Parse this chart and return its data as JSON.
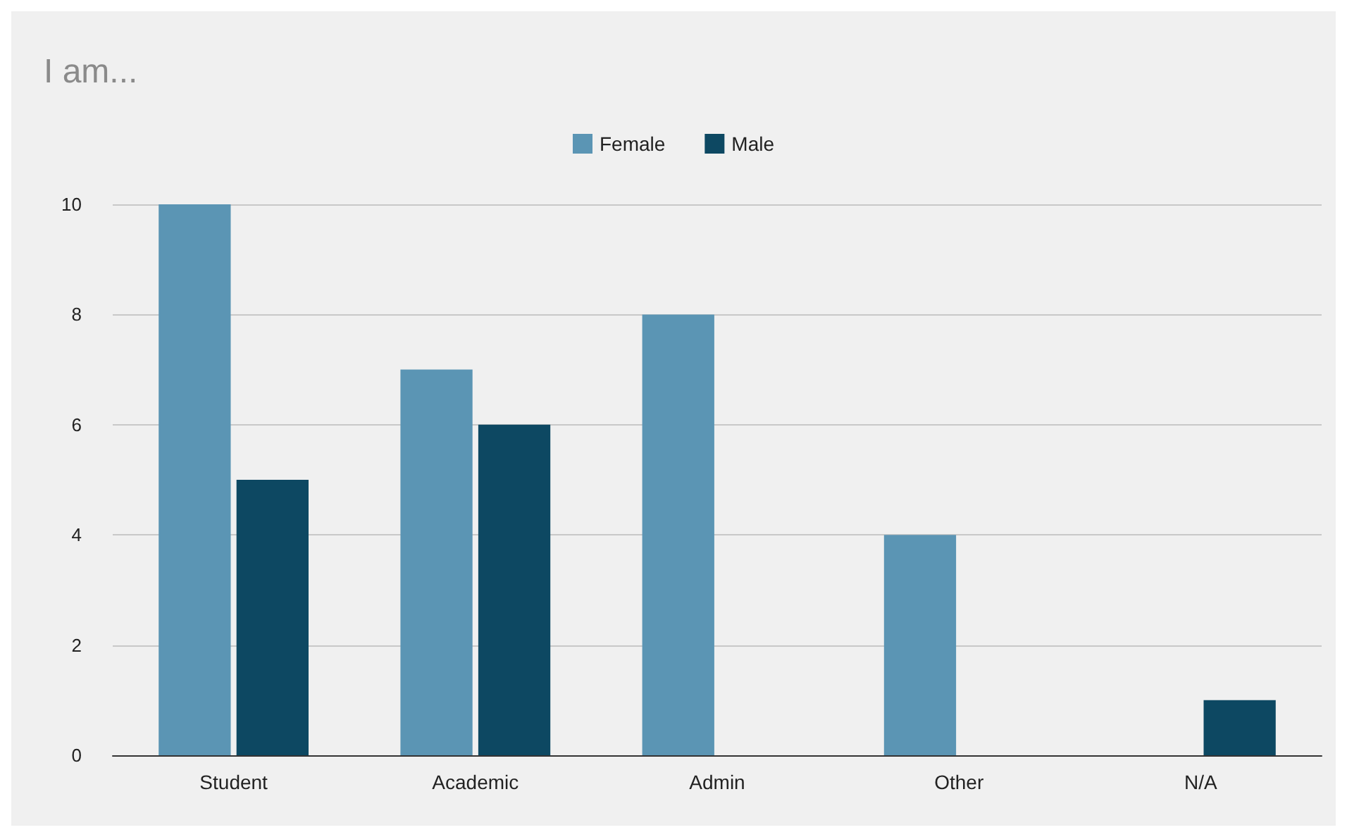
{
  "chart_data": {
    "type": "bar",
    "title": "I am...",
    "categories": [
      "Student",
      "Academic",
      "Admin",
      "Other",
      "N/A"
    ],
    "series": [
      {
        "name": "Female",
        "color": "#5b95b4",
        "values": [
          10,
          7,
          8,
          4,
          0
        ]
      },
      {
        "name": "Male",
        "color": "#0d4862",
        "values": [
          5,
          6,
          0,
          0,
          1
        ]
      }
    ],
    "ylim": [
      0,
      10
    ],
    "yticks": [
      0,
      2,
      4,
      6,
      8,
      10
    ],
    "grid": "y",
    "legend": "top"
  }
}
